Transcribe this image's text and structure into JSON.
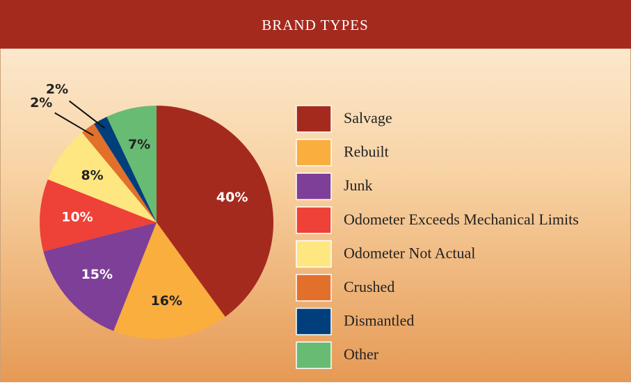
{
  "chart_data": {
    "type": "pie",
    "title": "BRAND TYPES",
    "categories": [
      "Salvage",
      "Rebuilt",
      "Junk",
      "Odometer Exceeds Mechanical Limits",
      "Odometer Not Actual",
      "Crushed",
      "Dismantled",
      "Other"
    ],
    "values": [
      40,
      16,
      15,
      10,
      8,
      2,
      2,
      7
    ],
    "value_labels": [
      "40%",
      "16%",
      "15%",
      "10%",
      "8%",
      "2%",
      "2%",
      "7%"
    ],
    "colors": [
      "#a52a1e",
      "#f9ae3e",
      "#7e3f98",
      "#ee4137",
      "#fee681",
      "#e2702a",
      "#003f7c",
      "#68bb72"
    ],
    "legend": "right"
  }
}
